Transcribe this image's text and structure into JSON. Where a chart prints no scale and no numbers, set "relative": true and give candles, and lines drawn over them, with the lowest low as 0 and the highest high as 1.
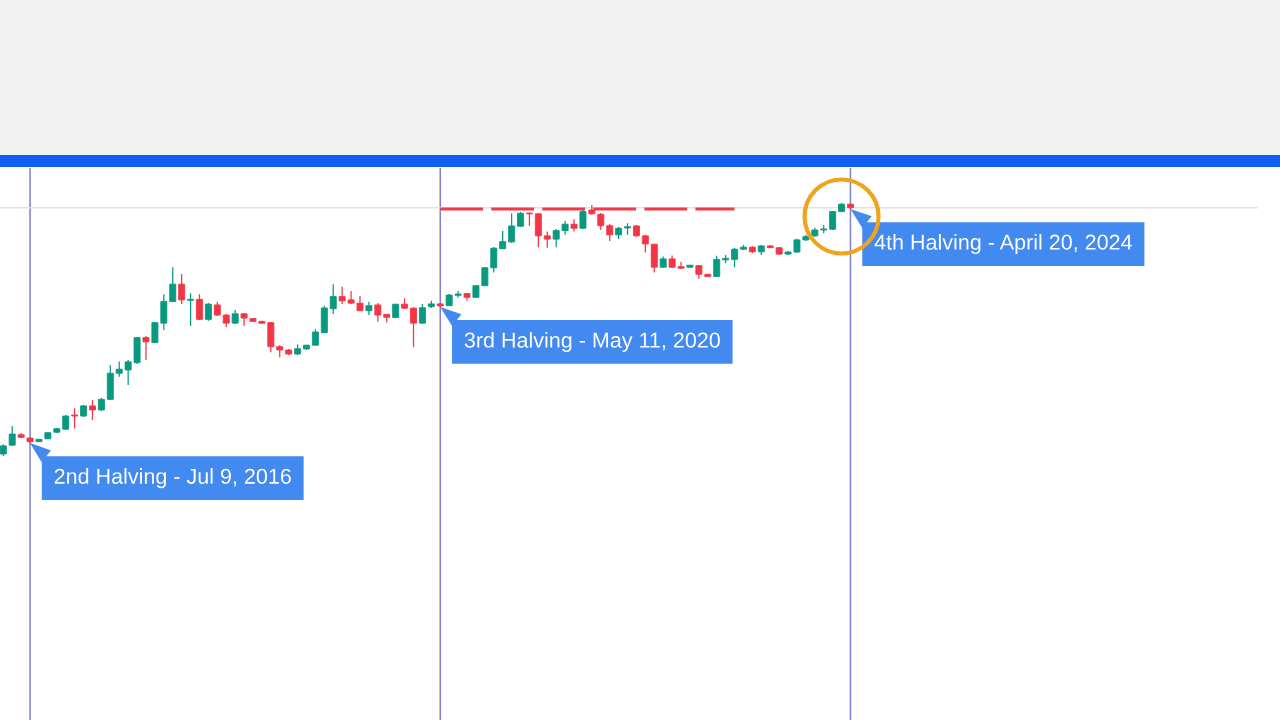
{
  "chart_data": {
    "type": "candlestick",
    "relative": true,
    "grid": "x",
    "categories": [
      null,
      null,
      null,
      null,
      null,
      null,
      null,
      null,
      null,
      null,
      null,
      null,
      null,
      null,
      null,
      null,
      null,
      null,
      null,
      null,
      null,
      null,
      null,
      null,
      null,
      null,
      null,
      null,
      null,
      null,
      null,
      null,
      null,
      null,
      null,
      null,
      null,
      null,
      null,
      null,
      null,
      null,
      null,
      null,
      null,
      null,
      null,
      null,
      null,
      null,
      null,
      null,
      null,
      null,
      null,
      null,
      null,
      null,
      null,
      null,
      null,
      null,
      null,
      null,
      null,
      null,
      null,
      null,
      null,
      null,
      null,
      null,
      null,
      null,
      null,
      null,
      null,
      null,
      null,
      null,
      null,
      null,
      null,
      null,
      null,
      null,
      null,
      null,
      null,
      null,
      null,
      null,
      null,
      null,
      null,
      null
    ],
    "ohlc": [
      [
        0.008,
        0.047,
        0.0,
        0.04
      ],
      [
        0.043,
        0.119,
        0.04,
        0.087
      ],
      [
        0.084,
        0.091,
        0.071,
        0.074
      ],
      [
        0.071,
        0.075,
        0.051,
        0.057
      ],
      [
        0.057,
        0.067,
        0.055,
        0.066
      ],
      [
        0.068,
        0.095,
        0.067,
        0.092
      ],
      [
        0.094,
        0.111,
        0.091,
        0.108
      ],
      [
        0.106,
        0.162,
        0.103,
        0.158
      ],
      [
        0.162,
        0.189,
        0.109,
        0.158
      ],
      [
        0.158,
        0.202,
        0.154,
        0.198
      ],
      [
        0.198,
        0.221,
        0.142,
        0.182
      ],
      [
        0.182,
        0.229,
        0.178,
        0.224
      ],
      [
        0.224,
        0.36,
        0.221,
        0.327
      ],
      [
        0.327,
        0.373,
        0.313,
        0.343
      ],
      [
        0.34,
        0.379,
        0.281,
        0.372
      ],
      [
        0.369,
        0.47,
        0.364,
        0.468
      ],
      [
        0.468,
        0.474,
        0.379,
        0.451
      ],
      [
        0.448,
        0.53,
        0.447,
        0.527
      ],
      [
        0.525,
        0.639,
        0.498,
        0.611
      ],
      [
        0.61,
        0.746,
        0.609,
        0.679
      ],
      [
        0.679,
        0.719,
        0.601,
        0.617
      ],
      [
        0.615,
        0.643,
        0.514,
        0.619
      ],
      [
        0.619,
        0.639,
        0.538,
        0.54
      ],
      [
        0.54,
        0.605,
        0.534,
        0.6
      ],
      [
        0.597,
        0.61,
        0.553,
        0.557
      ],
      [
        0.557,
        0.561,
        0.509,
        0.525
      ],
      [
        0.525,
        0.577,
        0.522,
        0.562
      ],
      [
        0.562,
        0.565,
        0.514,
        0.545
      ],
      [
        0.543,
        0.545,
        0.53,
        0.532
      ],
      [
        0.532,
        0.534,
        0.522,
        0.525
      ],
      [
        0.527,
        0.53,
        0.41,
        0.432
      ],
      [
        0.432,
        0.439,
        0.39,
        0.419
      ],
      [
        0.419,
        0.423,
        0.399,
        0.403
      ],
      [
        0.403,
        0.441,
        0.399,
        0.424
      ],
      [
        0.423,
        0.439,
        0.419,
        0.438
      ],
      [
        0.438,
        0.501,
        0.435,
        0.49
      ],
      [
        0.487,
        0.594,
        0.486,
        0.585
      ],
      [
        0.582,
        0.679,
        0.561,
        0.63
      ],
      [
        0.63,
        0.669,
        0.601,
        0.613
      ],
      [
        0.617,
        0.652,
        0.601,
        0.604
      ],
      [
        0.604,
        0.632,
        0.573,
        0.574
      ],
      [
        0.574,
        0.61,
        0.557,
        0.594
      ],
      [
        0.597,
        0.605,
        0.531,
        0.557
      ],
      [
        0.56,
        0.561,
        0.528,
        0.548
      ],
      [
        0.547,
        0.601,
        0.545,
        0.6
      ],
      [
        0.6,
        0.623,
        0.581,
        0.584
      ],
      [
        0.584,
        0.589,
        0.43,
        0.525
      ],
      [
        0.525,
        0.601,
        0.522,
        0.586
      ],
      [
        0.59,
        0.613,
        0.585,
        0.601
      ],
      [
        0.601,
        0.605,
        0.589,
        0.593
      ],
      [
        0.594,
        0.64,
        0.593,
        0.636
      ],
      [
        0.635,
        0.652,
        0.626,
        0.64
      ],
      [
        0.642,
        0.644,
        0.613,
        0.627
      ],
      [
        0.627,
        0.676,
        0.625,
        0.673
      ],
      [
        0.673,
        0.747,
        0.672,
        0.744
      ],
      [
        0.744,
        0.826,
        0.725,
        0.821
      ],
      [
        0.819,
        0.889,
        0.818,
        0.847
      ],
      [
        0.846,
        0.959,
        0.842,
        0.909
      ],
      [
        0.908,
        0.964,
        0.905,
        0.959
      ],
      [
        0.96,
        0.962,
        0.909,
        0.957
      ],
      [
        0.957,
        0.96,
        0.825,
        0.87
      ],
      [
        0.87,
        0.887,
        0.823,
        0.857
      ],
      [
        0.857,
        0.897,
        0.825,
        0.891
      ],
      [
        0.891,
        0.929,
        0.874,
        0.916
      ],
      [
        0.916,
        0.936,
        0.887,
        0.9
      ],
      [
        0.9,
        0.972,
        0.897,
        0.966
      ],
      [
        0.972,
        0.992,
        0.953,
        0.957
      ],
      [
        0.955,
        0.96,
        0.893,
        0.91
      ],
      [
        0.91,
        0.917,
        0.85,
        0.874
      ],
      [
        0.874,
        0.905,
        0.857,
        0.9
      ],
      [
        0.901,
        0.92,
        0.874,
        0.906
      ],
      [
        0.909,
        0.913,
        0.866,
        0.87
      ],
      [
        0.87,
        0.874,
        0.804,
        0.838
      ],
      [
        0.837,
        0.838,
        0.725,
        0.746
      ],
      [
        0.746,
        0.788,
        0.743,
        0.779
      ],
      [
        0.779,
        0.792,
        0.743,
        0.746
      ],
      [
        0.748,
        0.768,
        0.739,
        0.742
      ],
      [
        0.746,
        0.755,
        0.743,
        0.754
      ],
      [
        0.752,
        0.755,
        0.7,
        0.718
      ],
      [
        0.718,
        0.719,
        0.708,
        0.709
      ],
      [
        0.709,
        0.791,
        0.708,
        0.777
      ],
      [
        0.775,
        0.794,
        0.762,
        0.781
      ],
      [
        0.777,
        0.822,
        0.746,
        0.817
      ],
      [
        0.817,
        0.834,
        0.814,
        0.825
      ],
      [
        0.825,
        0.83,
        0.802,
        0.807
      ],
      [
        0.807,
        0.834,
        0.794,
        0.83
      ],
      [
        0.83,
        0.834,
        0.822,
        0.823
      ],
      [
        0.823,
        0.826,
        0.794,
        0.798
      ],
      [
        0.798,
        0.81,
        0.794,
        0.806
      ],
      [
        0.806,
        0.858,
        0.802,
        0.854
      ],
      [
        0.854,
        0.874,
        0.85,
        0.867
      ],
      [
        0.87,
        0.902,
        0.866,
        0.893
      ],
      [
        0.893,
        0.913,
        0.88,
        0.897
      ],
      [
        0.896,
        0.968,
        0.893,
        0.966
      ],
      [
        0.966,
        1.0,
        0.964,
        0.995
      ],
      [
        0.995,
        0.998,
        0.976,
        0.981
      ]
    ],
    "colors": [
      "#089981",
      "#089981",
      "#f23645",
      "#f23645",
      "#089981",
      "#089981",
      "#089981",
      "#089981",
      "#f23645",
      "#089981",
      "#f23645",
      "#089981",
      "#089981",
      "#089981",
      "#089981",
      "#089981",
      "#f23645",
      "#089981",
      "#089981",
      "#089981",
      "#f23645",
      "#089981",
      "#f23645",
      "#089981",
      "#f23645",
      "#f23645",
      "#089981",
      "#f23645",
      "#f23645",
      "#f23645",
      "#f23645",
      "#f23645",
      "#f23645",
      "#089981",
      "#089981",
      "#089981",
      "#089981",
      "#089981",
      "#f23645",
      "#f23645",
      "#f23645",
      "#089981",
      "#f23645",
      "#f23645",
      "#089981",
      "#f23645",
      "#f23645",
      "#089981",
      "#089981",
      "#f23645",
      "#089981",
      "#089981",
      "#f23645",
      "#089981",
      "#089981",
      "#089981",
      "#089981",
      "#089981",
      "#089981",
      "#f23645",
      "#f23645",
      "#f23645",
      "#089981",
      "#089981",
      "#f23645",
      "#089981",
      "#f23645",
      "#f23645",
      "#f23645",
      "#089981",
      "#089981",
      "#f23645",
      "#f23645",
      "#f23645",
      "#089981",
      "#f23645",
      "#f23645",
      "#089981",
      "#f23645",
      "#f23645",
      "#089981",
      "#089981",
      "#089981",
      "#089981",
      "#f23645",
      "#089981",
      "#f23645",
      "#f23645",
      "#089981",
      "#089981",
      "#089981",
      "#089981",
      "#089981",
      "#089981",
      "#089981",
      "#f23645"
    ],
    "series": [
      {
        "type": "line",
        "color": "#ee3b47",
        "line_style": "dashed",
        "values": [
          null,
          null,
          null,
          null,
          null,
          null,
          null,
          null,
          null,
          null,
          null,
          null,
          null,
          null,
          null,
          null,
          null,
          null,
          null,
          null,
          null,
          null,
          null,
          null,
          null,
          null,
          null,
          null,
          null,
          null,
          null,
          null,
          null,
          null,
          null,
          null,
          null,
          null,
          null,
          null,
          null,
          null,
          null,
          null,
          null,
          null,
          null,
          null,
          null,
          0.976,
          0.976,
          0.976,
          0.976,
          0.976,
          0.976,
          0.976,
          0.976,
          0.976,
          0.976,
          0.976,
          0.976,
          0.976,
          0.976,
          0.976,
          0.976,
          0.976,
          0.976,
          0.976,
          0.976,
          0.976,
          0.976,
          0.976,
          0.976,
          0.976,
          0.976,
          0.976,
          0.976,
          0.976,
          0.976,
          0.976,
          0.976,
          0.976,
          0.976,
          null,
          null,
          null,
          null,
          null,
          null,
          null,
          null,
          null,
          null,
          null,
          null,
          null
        ]
      }
    ],
    "ref_lines": [
      {
        "axis": "y",
        "value": 0.981,
        "color": "#e2e2e2"
      }
    ],
    "annotations": [
      "2nd Halving - Jul 9, 2016",
      "3rd Halving - May 11, 2020",
      "4th Halving - April 20, 2024"
    ]
  }
}
